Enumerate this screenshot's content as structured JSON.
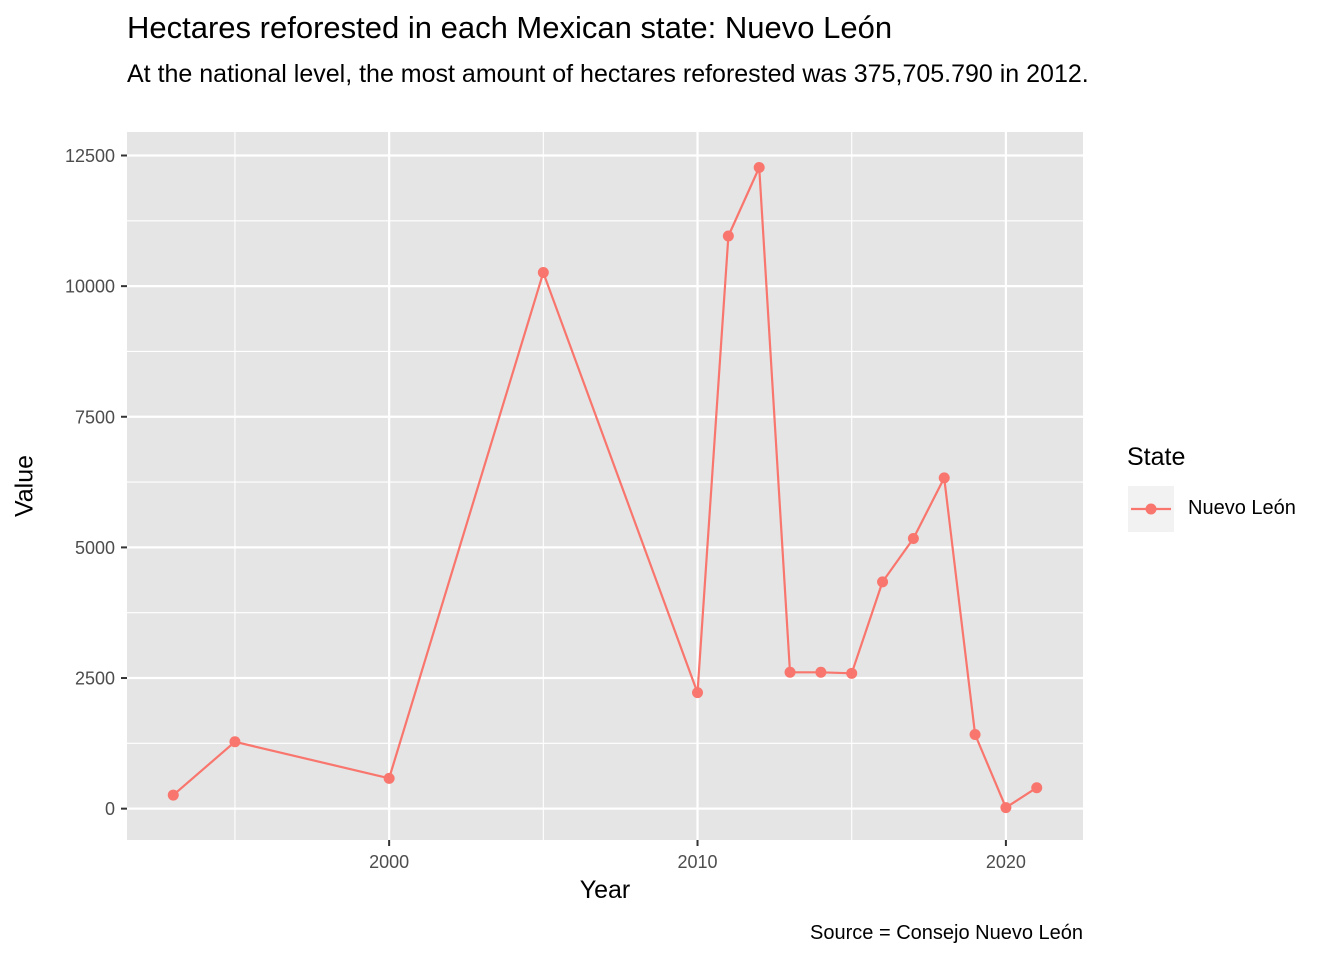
{
  "chart_data": {
    "type": "line",
    "title": "Hectares reforested in each Mexican state: Nuevo León",
    "subtitle": "At the national level, the most amount of hectares reforested was 375,705.790 in 2012.",
    "xlabel": "Year",
    "ylabel": "Value",
    "caption": "Source = Consejo Nuevo León",
    "legend_title": "State",
    "legend_position": "right",
    "grid": true,
    "xlim": [
      1991.5,
      2022.5
    ],
    "ylim": [
      -600,
      12950
    ],
    "x_ticks": [
      2000,
      2010,
      2020
    ],
    "x_minor_ticks": [
      1995,
      2005,
      2015
    ],
    "y_ticks": [
      0,
      2500,
      5000,
      7500,
      10000,
      12500
    ],
    "y_minor_ticks": [
      1250,
      3750,
      6250,
      8750,
      11250
    ],
    "series": [
      {
        "name": "Nuevo León",
        "color": "#F8766D",
        "points": [
          {
            "x": 1993,
            "y": 260
          },
          {
            "x": 1995,
            "y": 1280
          },
          {
            "x": 2000,
            "y": 580
          },
          {
            "x": 2005,
            "y": 10260
          },
          {
            "x": 2010,
            "y": 2220
          },
          {
            "x": 2011,
            "y": 10960
          },
          {
            "x": 2012,
            "y": 12270
          },
          {
            "x": 2013,
            "y": 2610
          },
          {
            "x": 2014,
            "y": 2610
          },
          {
            "x": 2015,
            "y": 2590
          },
          {
            "x": 2016,
            "y": 4340
          },
          {
            "x": 2017,
            "y": 5170
          },
          {
            "x": 2018,
            "y": 6330
          },
          {
            "x": 2019,
            "y": 1420
          },
          {
            "x": 2020,
            "y": 20
          },
          {
            "x": 2021,
            "y": 400
          }
        ]
      }
    ]
  }
}
